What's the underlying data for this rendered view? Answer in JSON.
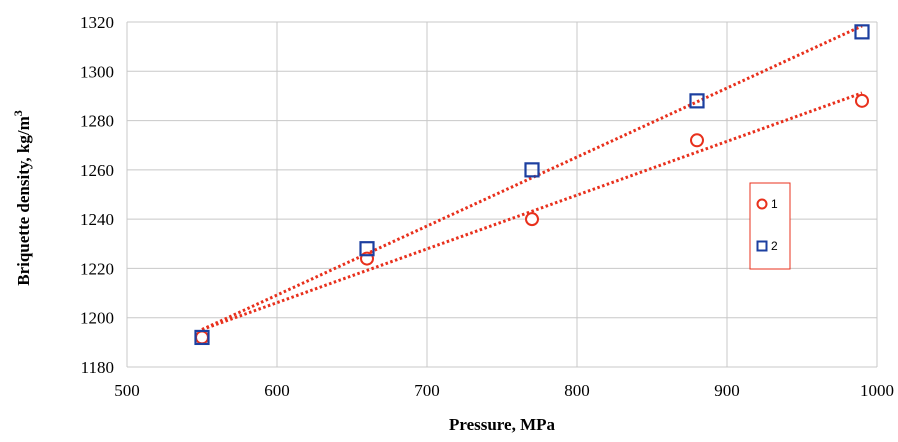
{
  "chart_data": {
    "type": "scatter",
    "xlabel": "Pressure, MPa",
    "ylabel_main": "Briquette  density,  kg/m",
    "ylabel_sup": "3",
    "xlim": [
      500,
      1000
    ],
    "ylim": [
      1180,
      1320
    ],
    "xticks": [
      "500",
      "600",
      "700",
      "800",
      "900",
      "1000"
    ],
    "yticks": [
      "1180",
      "1200",
      "1220",
      "1240",
      "1260",
      "1280",
      "1300",
      "1320"
    ],
    "grid": true,
    "legend_position": "right",
    "series": [
      {
        "name": "1",
        "marker": "circle",
        "color": "#e8301c",
        "trendline": "linear",
        "trendline_color": "#e8301c",
        "points": [
          [
            550,
            1192
          ],
          [
            660,
            1224
          ],
          [
            770,
            1240
          ],
          [
            880,
            1272
          ],
          [
            990,
            1288
          ]
        ]
      },
      {
        "name": "2",
        "marker": "square",
        "color": "#1c3fa0",
        "trendline": "linear",
        "trendline_color": "#e8301c",
        "points": [
          [
            550,
            1192
          ],
          [
            660,
            1228
          ],
          [
            770,
            1260
          ],
          [
            880,
            1288
          ],
          [
            990,
            1316
          ]
        ]
      }
    ]
  }
}
